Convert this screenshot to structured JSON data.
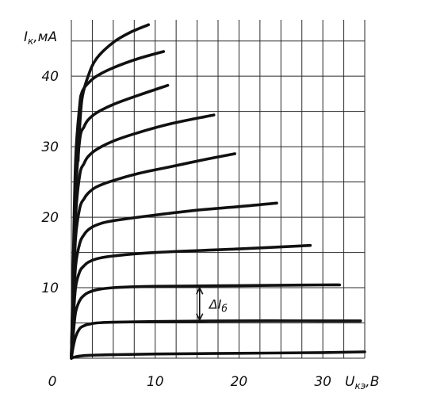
{
  "chart_data": {
    "type": "line",
    "title": "",
    "ylabel": {
      "main": "I",
      "sub": "к",
      "unit": ",мА"
    },
    "xlabel": {
      "main": "U",
      "sub": "кэ",
      "unit": ",В"
    },
    "xlim": [
      0,
      35
    ],
    "ylim": [
      0,
      48
    ],
    "x_ticks": [
      0,
      10,
      20,
      30
    ],
    "y_ticks": [
      10,
      20,
      30,
      40
    ],
    "x_tick_labels": [
      "0",
      "10",
      "20",
      "30"
    ],
    "y_tick_labels": [
      "10",
      "20",
      "30",
      "40"
    ],
    "grid": true,
    "grid_x_step": 2.5,
    "grid_y_step": 5,
    "series": [
      {
        "x": [
          0,
          0.5,
          1,
          2,
          5,
          10,
          20,
          30,
          35
        ],
        "y": [
          0,
          0.2,
          0.3,
          0.4,
          0.5,
          0.6,
          0.7,
          0.8,
          0.9
        ]
      },
      {
        "x": [
          0,
          0.2,
          0.5,
          1,
          1.5,
          2,
          3,
          5,
          10,
          20,
          30,
          34.5
        ],
        "y": [
          0,
          1.5,
          3,
          4.2,
          4.6,
          4.8,
          5.0,
          5.1,
          5.2,
          5.3,
          5.3,
          5.3
        ]
      },
      {
        "x": [
          0,
          0.2,
          0.5,
          1,
          1.5,
          2,
          3,
          5,
          10,
          20,
          30,
          32
        ],
        "y": [
          0,
          3,
          6.5,
          8.2,
          8.9,
          9.3,
          9.7,
          10.0,
          10.2,
          10.3,
          10.4,
          10.4
        ]
      },
      {
        "x": [
          0,
          0.2,
          0.5,
          1,
          1.5,
          2,
          3,
          5,
          10,
          20,
          28.5
        ],
        "y": [
          0,
          5,
          10,
          12.3,
          13.1,
          13.6,
          14.1,
          14.5,
          15.0,
          15.5,
          16.0
        ]
      },
      {
        "x": [
          0,
          0.2,
          0.5,
          1,
          1.5,
          2,
          3,
          5,
          10,
          15,
          20,
          24.5
        ],
        "y": [
          0,
          6,
          13,
          16.3,
          17.5,
          18.2,
          18.9,
          19.5,
          20.3,
          21.0,
          21.5,
          22.0
        ]
      },
      {
        "x": [
          0,
          0.2,
          0.5,
          1,
          1.5,
          2,
          3,
          5,
          8,
          12,
          16,
          19.5
        ],
        "y": [
          0,
          8,
          17,
          21.3,
          22.6,
          23.4,
          24.3,
          25.2,
          26.2,
          27.2,
          28.2,
          29.0
        ]
      },
      {
        "x": [
          0,
          0.2,
          0.5,
          1,
          1.5,
          2,
          3,
          5,
          8,
          12,
          17
        ],
        "y": [
          0,
          9,
          20,
          26,
          27.6,
          28.6,
          29.6,
          30.8,
          32.0,
          33.3,
          34.5
        ]
      },
      {
        "x": [
          0,
          0.2,
          0.5,
          1,
          1.5,
          2,
          3,
          5,
          8,
          11.5
        ],
        "y": [
          0,
          10,
          23,
          31,
          32.8,
          33.8,
          34.8,
          36.0,
          37.3,
          38.7
        ]
      },
      {
        "x": [
          0,
          0.2,
          0.5,
          1,
          1.2,
          1.5,
          2,
          3,
          5,
          8,
          11
        ],
        "y": [
          0,
          12,
          28,
          36,
          37.5,
          38.3,
          39.0,
          40.0,
          41.2,
          42.5,
          43.5
        ]
      },
      {
        "x": [
          0.8,
          1,
          1.3,
          2,
          3,
          5,
          7,
          9.2
        ],
        "y": [
          28,
          33,
          37,
          40,
          42.5,
          44.8,
          46.2,
          47.3
        ]
      }
    ],
    "annotations": [
      {
        "text": "ΔI",
        "sub": "б",
        "x": 15.3,
        "y": 7.7
      }
    ]
  }
}
